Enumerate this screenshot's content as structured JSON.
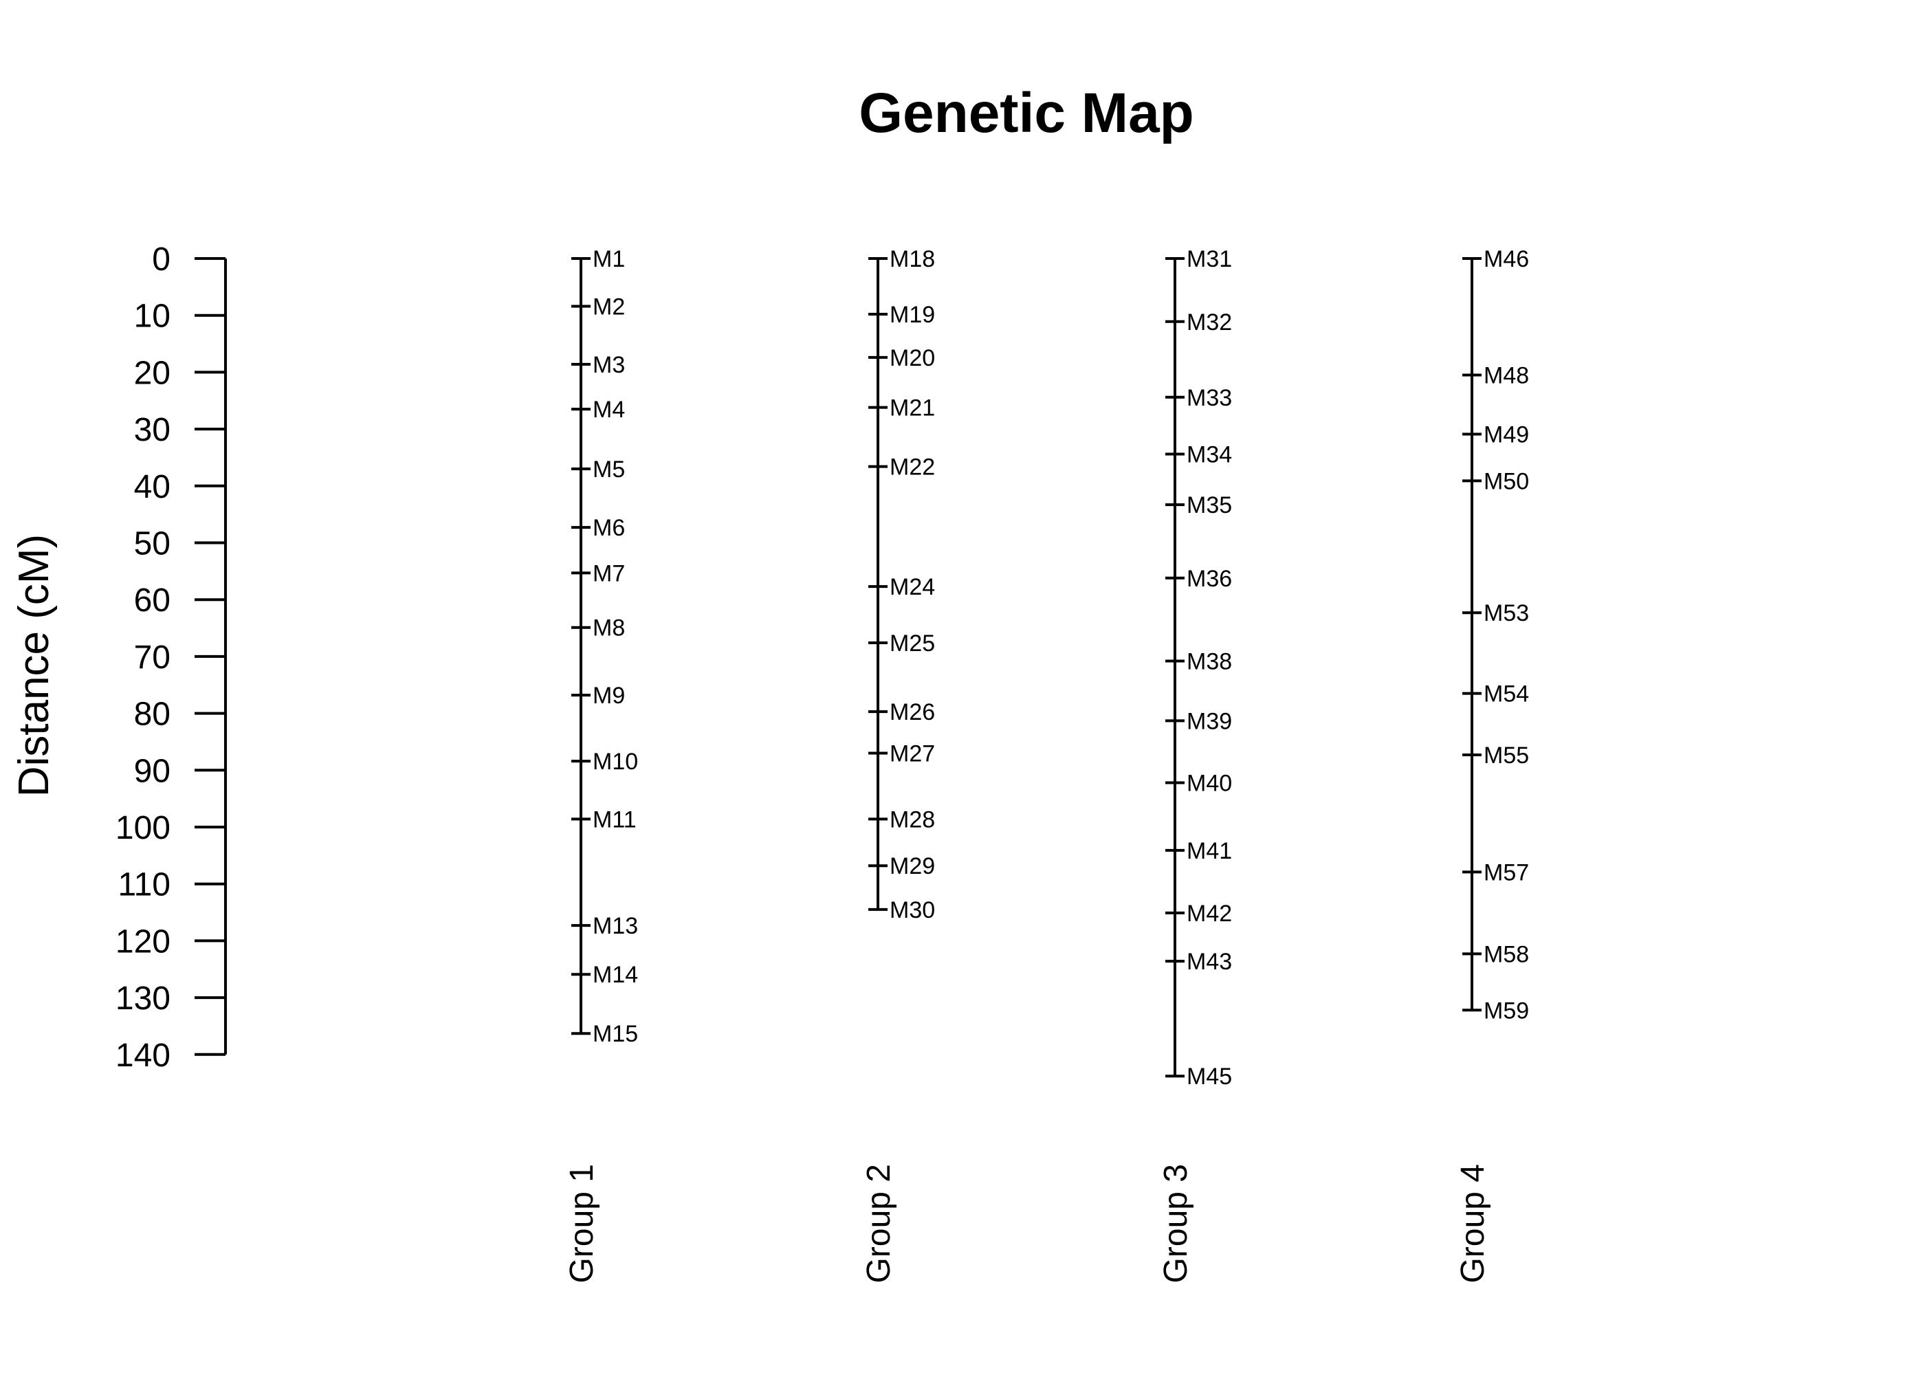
{
  "chart_data": {
    "type": "genetic-map",
    "title": "Genetic Map",
    "ylabel": "Distance (cM)",
    "ylim": [
      0,
      140
    ],
    "y_ticks": [
      "0",
      "10",
      "20",
      "30",
      "40",
      "50",
      "60",
      "70",
      "80",
      "90",
      "100",
      "110",
      "120",
      "130",
      "140"
    ],
    "y_reversed": true,
    "grid": false,
    "groups": [
      {
        "name": "Group 1",
        "markers": [
          {
            "label": "M1",
            "position": 0
          },
          {
            "label": "M2",
            "position": 8.4
          },
          {
            "label": "M3",
            "position": 18.6
          },
          {
            "label": "M4",
            "position": 26.5
          },
          {
            "label": "M5",
            "position": 37
          },
          {
            "label": "M6",
            "position": 47.3
          },
          {
            "label": "M7",
            "position": 55.3
          },
          {
            "label": "M8",
            "position": 64.9
          },
          {
            "label": "M9",
            "position": 76.8
          },
          {
            "label": "M10",
            "position": 88.4
          },
          {
            "label": "M11",
            "position": 98.6
          },
          {
            "label": "M13",
            "position": 117.3
          },
          {
            "label": "M14",
            "position": 125.9
          },
          {
            "label": "M15",
            "position": 136.3
          }
        ]
      },
      {
        "name": "Group 2",
        "markers": [
          {
            "label": "M18",
            "position": 0
          },
          {
            "label": "M19",
            "position": 9.8
          },
          {
            "label": "M20",
            "position": 17.4
          },
          {
            "label": "M21",
            "position": 26.2
          },
          {
            "label": "M22",
            "position": 36.6
          },
          {
            "label": "M24",
            "position": 57.7
          },
          {
            "label": "M25",
            "position": 67.6
          },
          {
            "label": "M26",
            "position": 79.7
          },
          {
            "label": "M27",
            "position": 87
          },
          {
            "label": "M28",
            "position": 98.6
          },
          {
            "label": "M29",
            "position": 106.8
          },
          {
            "label": "M30",
            "position": 114.5
          }
        ]
      },
      {
        "name": "Group 3",
        "markers": [
          {
            "label": "M31",
            "position": 0
          },
          {
            "label": "M32",
            "position": 11.1
          },
          {
            "label": "M33",
            "position": 24.4
          },
          {
            "label": "M34",
            "position": 34.4
          },
          {
            "label": "M35",
            "position": 43.3
          },
          {
            "label": "M36",
            "position": 56.2
          },
          {
            "label": "M38",
            "position": 70.8
          },
          {
            "label": "M39",
            "position": 81.3
          },
          {
            "label": "M40",
            "position": 92.2
          },
          {
            "label": "M41",
            "position": 104.1
          },
          {
            "label": "M42",
            "position": 115.1
          },
          {
            "label": "M43",
            "position": 123.6
          },
          {
            "label": "M45",
            "position": 143.8
          }
        ]
      },
      {
        "name": "Group 4",
        "markers": [
          {
            "label": "M46",
            "position": 0
          },
          {
            "label": "M48",
            "position": 20.5
          },
          {
            "label": "M49",
            "position": 30.9
          },
          {
            "label": "M50",
            "position": 39.1
          },
          {
            "label": "M53",
            "position": 62.3
          },
          {
            "label": "M54",
            "position": 76.5
          },
          {
            "label": "M55",
            "position": 87.3
          },
          {
            "label": "M57",
            "position": 107.9
          },
          {
            "label": "M58",
            "position": 122.3
          },
          {
            "label": "M59",
            "position": 132.2
          }
        ]
      }
    ]
  }
}
